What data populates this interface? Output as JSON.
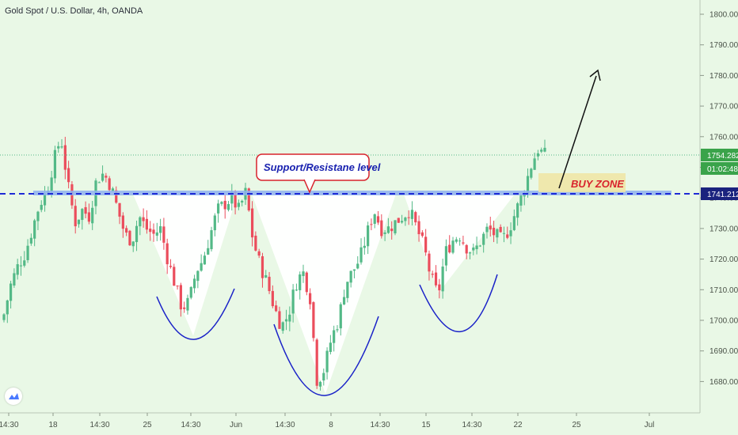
{
  "header": {
    "symbol_title": "Gold Spot / U.S. Dollar, 4h, OANDA"
  },
  "colors": {
    "background": "#e9f8e6",
    "up_candle": "#53b987",
    "down_candle": "#eb4d5c",
    "support_line": "#1e2bd6",
    "price_label_bg": "#1a237e",
    "current_price_bg": "#3aa34a",
    "annotation_border": "#d8222c",
    "annotation_text": "#1a22b0",
    "buy_zone_fill": "#efe6a6",
    "buy_zone_text": "#d8222c",
    "pattern_fill": "#ffffff"
  },
  "chart_data": {
    "type": "candlestick",
    "title": "Gold Spot / U.S. Dollar, 4h, OANDA",
    "y_axis": {
      "ylim": [
        1670,
        1805
      ],
      "ticks": [
        1680,
        1690,
        1700,
        1710,
        1720,
        1730,
        1740,
        1750,
        1760,
        1770,
        1780,
        1790,
        1800
      ],
      "tick_labels": [
        "1680.000",
        "1690.000",
        "1700.000",
        "1710.000",
        "1720.000",
        "1730.000",
        "1740.000",
        "1750.000",
        "1760.000",
        "1770.000",
        "1780.000",
        "1790.000",
        "1800.000"
      ],
      "position": "right"
    },
    "x_axis": {
      "tick_labels": [
        "14:30",
        "18",
        "14:30",
        "25",
        "14:30",
        "Jun",
        "14:30",
        "8",
        "14:30",
        "15",
        "14:30",
        "22",
        "25",
        "Jul"
      ]
    },
    "grid": false,
    "price_labels": {
      "current_price": "1754.282",
      "countdown": "01:02:48",
      "support_level": "1741.212"
    },
    "annotations": {
      "support_resistance_label": "Support/Resistane level",
      "buy_zone_label": "BUY ZONE"
    },
    "support_level": 1741.212,
    "buy_zone": {
      "low": 1742,
      "high": 1748
    },
    "target_arrow": {
      "from_price": 1742,
      "to_price": 1782
    },
    "pattern": "inverse head and shoulders",
    "close_waypoints": [
      1702,
      1712,
      1718,
      1722,
      1730,
      1738,
      1742,
      1752,
      1760,
      1744,
      1732,
      1736,
      1734,
      1746,
      1748,
      1744,
      1736,
      1728,
      1726,
      1734,
      1730,
      1728,
      1730,
      1720,
      1712,
      1704,
      1706,
      1716,
      1720,
      1728,
      1736,
      1738,
      1740,
      1736,
      1742,
      1726,
      1718,
      1712,
      1704,
      1698,
      1702,
      1712,
      1716,
      1708,
      1680,
      1684,
      1694,
      1700,
      1712,
      1716,
      1720,
      1728,
      1736,
      1730,
      1730,
      1732,
      1734,
      1736,
      1730,
      1724,
      1714,
      1708,
      1722,
      1726,
      1728,
      1724,
      1722,
      1726,
      1730,
      1728,
      1726,
      1730,
      1736,
      1742,
      1750,
      1756,
      1754
    ]
  }
}
